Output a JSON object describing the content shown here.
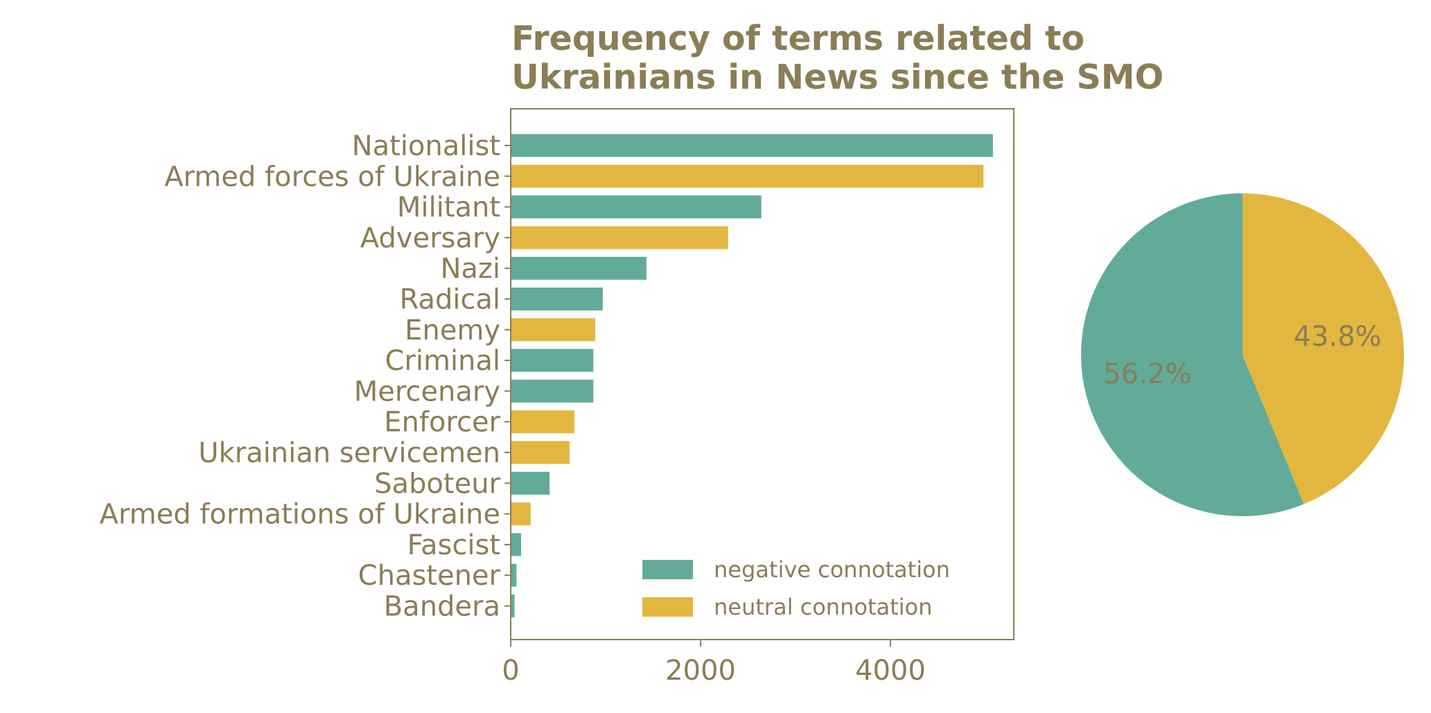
{
  "colors": {
    "negative": "#62ab9b",
    "neutral": "#e2b73f",
    "text": "#8b7d55",
    "axis": "#8b7d55"
  },
  "chart_data": [
    {
      "type": "bar",
      "orientation": "horizontal",
      "title": "Frequency of terms related to Ukrainians in News since the SMO",
      "title_lines": [
        "Frequency of terms related to",
        "Ukrainians in News since the SMO"
      ],
      "xlim": [
        0,
        5300
      ],
      "xticks": [
        0,
        2000,
        4000
      ],
      "series": [
        {
          "name": "negative connotation",
          "color_key": "negative"
        },
        {
          "name": "neutral connotation",
          "color_key": "neutral"
        }
      ],
      "bars": [
        {
          "label": "Nationalist",
          "value": 5080,
          "series": "negative connotation"
        },
        {
          "label": "Armed forces of Ukraine",
          "value": 4980,
          "series": "neutral connotation"
        },
        {
          "label": "Militant",
          "value": 2640,
          "series": "negative connotation"
        },
        {
          "label": "Adversary",
          "value": 2290,
          "series": "neutral connotation"
        },
        {
          "label": "Nazi",
          "value": 1430,
          "series": "negative connotation"
        },
        {
          "label": "Radical",
          "value": 970,
          "series": "negative connotation"
        },
        {
          "label": "Enemy",
          "value": 890,
          "series": "neutral connotation"
        },
        {
          "label": "Criminal",
          "value": 870,
          "series": "negative connotation"
        },
        {
          "label": "Mercenary",
          "value": 870,
          "series": "negative connotation"
        },
        {
          "label": "Enforcer",
          "value": 670,
          "series": "neutral connotation"
        },
        {
          "label": "Ukrainian servicemen",
          "value": 620,
          "series": "neutral connotation"
        },
        {
          "label": "Saboteur",
          "value": 410,
          "series": "negative connotation"
        },
        {
          "label": "Armed formations of Ukraine",
          "value": 210,
          "series": "neutral connotation"
        },
        {
          "label": "Fascist",
          "value": 110,
          "series": "negative connotation"
        },
        {
          "label": "Chastener",
          "value": 60,
          "series": "negative connotation"
        },
        {
          "label": "Bandera",
          "value": 40,
          "series": "negative connotation"
        }
      ],
      "legend": {
        "placement": "lower-right",
        "entries": [
          "negative connotation",
          "neutral connotation"
        ]
      },
      "grid": false
    },
    {
      "type": "pie",
      "slices": [
        {
          "label": "negative connotation",
          "value": 56.2,
          "pct_text": "56.2%",
          "color_key": "negative"
        },
        {
          "label": "neutral connotation",
          "value": 43.8,
          "pct_text": "43.8%",
          "color_key": "neutral"
        }
      ],
      "start_angle_deg": 90,
      "direction": "clockwise-neutral-first"
    }
  ]
}
